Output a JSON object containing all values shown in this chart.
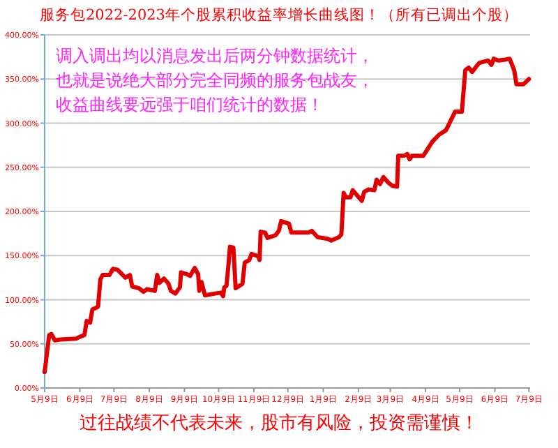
{
  "chart_data": {
    "type": "line",
    "title": "服务包2022-2023年个股累积收益率增长曲线图！（所有已调出个股）",
    "annotations": [
      "调入调出均以消息发出后两分钟数据统计，",
      "也就是说绝大部分完全同频的服务包战友，",
      "收益曲线要远强于咱们统计的数据！",
      "过往战绩不代表未来，股市有风险，投资需谨慎！"
    ],
    "xlim": [
      "2022-05-09",
      "2023-07-10"
    ],
    "xticks": [
      {
        "value": "2022-05-09",
        "label": "5月9日"
      },
      {
        "value": "2022-06-09",
        "label": "6月9日"
      },
      {
        "value": "2022-07-09",
        "label": "7月9日"
      },
      {
        "value": "2022-08-09",
        "label": "8月9日"
      },
      {
        "value": "2022-09-09",
        "label": "9月9日"
      },
      {
        "value": "2022-10-09",
        "label": "10月9日"
      },
      {
        "value": "2022-11-09",
        "label": "11月9日"
      },
      {
        "value": "2022-12-09",
        "label": "12月9日"
      },
      {
        "value": "2023-01-09",
        "label": "1月9日"
      },
      {
        "value": "2023-02-09",
        "label": "2月9日"
      },
      {
        "value": "2023-03-09",
        "label": "3月9日"
      },
      {
        "value": "2023-04-09",
        "label": "4月9日"
      },
      {
        "value": "2023-05-09",
        "label": "5月9日"
      },
      {
        "value": "2023-06-09",
        "label": "6月9日"
      },
      {
        "value": "2023-07-09",
        "label": "7月9日"
      }
    ],
    "ylim": [
      0,
      400
    ],
    "yticks": [
      {
        "value": 0,
        "label": "0.00%"
      },
      {
        "value": 50,
        "label": "50.00%"
      },
      {
        "value": 100,
        "label": "100.00%"
      },
      {
        "value": 150,
        "label": "150.00%"
      },
      {
        "value": 200,
        "label": "200.00%"
      },
      {
        "value": 250,
        "label": "250.00%"
      },
      {
        "value": 300,
        "label": "300.00%"
      },
      {
        "value": 350,
        "label": "350.00%"
      },
      {
        "value": 400,
        "label": "400.00%"
      }
    ],
    "grid": "y",
    "line_style": "solid",
    "marker": "none",
    "series": [
      {
        "color": "#e00000",
        "x": [
          "2022-05-09",
          "2022-05-13",
          "2022-05-15",
          "2022-05-18",
          "2022-05-23",
          "2022-06-06",
          "2022-06-09",
          "2022-06-13",
          "2022-06-15",
          "2022-06-18",
          "2022-06-20",
          "2022-06-25",
          "2022-06-27",
          "2022-06-29",
          "2022-07-05",
          "2022-07-08",
          "2022-07-12",
          "2022-07-16",
          "2022-07-19",
          "2022-07-23",
          "2022-07-25",
          "2022-07-31",
          "2022-08-04",
          "2022-08-07",
          "2022-08-14",
          "2022-08-16",
          "2022-08-18",
          "2022-08-22",
          "2022-08-26",
          "2022-08-28",
          "2022-09-01",
          "2022-09-05",
          "2022-09-06",
          "2022-09-11",
          "2022-09-14",
          "2022-09-18",
          "2022-09-21",
          "2022-09-22",
          "2022-09-24",
          "2022-09-27",
          "2022-10-06",
          "2022-10-11",
          "2022-10-13",
          "2022-10-14",
          "2022-10-16",
          "2022-10-18",
          "2022-10-19",
          "2022-10-22",
          "2022-10-24",
          "2022-10-30",
          "2022-11-01",
          "2022-11-05",
          "2022-11-07",
          "2022-11-13",
          "2022-11-14",
          "2022-11-15",
          "2022-11-19",
          "2022-11-21",
          "2022-11-28",
          "2022-12-01",
          "2022-12-03",
          "2022-12-10",
          "2022-12-12",
          "2022-12-27",
          "2022-12-30",
          "2023-01-04",
          "2023-01-13",
          "2023-01-16",
          "2023-01-23",
          "2023-01-25",
          "2023-01-27",
          "2023-01-29",
          "2023-02-02",
          "2023-02-04",
          "2023-02-08",
          "2023-02-12",
          "2023-02-14",
          "2023-02-18",
          "2023-02-23",
          "2023-02-25",
          "2023-02-28",
          "2023-03-03",
          "2023-03-07",
          "2023-03-11",
          "2023-03-15",
          "2023-03-16",
          "2023-03-21",
          "2023-03-24",
          "2023-03-26",
          "2023-03-28",
          "2023-04-07",
          "2023-04-15",
          "2023-04-21",
          "2023-04-27",
          "2023-05-02",
          "2023-05-05",
          "2023-05-11",
          "2023-05-14",
          "2023-05-17",
          "2023-05-20",
          "2023-05-26",
          "2023-06-03",
          "2023-06-06",
          "2023-06-08",
          "2023-06-12",
          "2023-06-18",
          "2023-06-22",
          "2023-06-26",
          "2023-06-28",
          "2023-07-04",
          "2023-07-09"
        ],
        "values": [
          18,
          60,
          61,
          54,
          55,
          56,
          58,
          60,
          76,
          74,
          89,
          92,
          123,
          128,
          128,
          135,
          134,
          129,
          125,
          128,
          115,
          113,
          109,
          112,
          110,
          128,
          119,
          124,
          118,
          110,
          107,
          114,
          131,
          129,
          127,
          136,
          129,
          110,
          120,
          105,
          107,
          108,
          104,
          114,
          116,
          144,
          160,
          159,
          113,
          118,
          142,
          145,
          152,
          149,
          145,
          177,
          176,
          170,
          173,
          178,
          189,
          186,
          176,
          176,
          178,
          171,
          169,
          167,
          171,
          174,
          221,
          216,
          216,
          224,
          218,
          212,
          222,
          225,
          224,
          236,
          231,
          239,
          233,
          229,
          228,
          263,
          263,
          265,
          259,
          263,
          263,
          279,
          287,
          292,
          305,
          313,
          313,
          360,
          363,
          358,
          368,
          371,
          366,
          373,
          371,
          372,
          373,
          360,
          344,
          344,
          350
        ]
      }
    ]
  }
}
